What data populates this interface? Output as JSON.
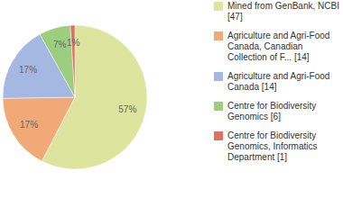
{
  "chart_data": {
    "type": "pie",
    "categories": [
      "Mined from GenBank, NCBI [47]",
      "Agriculture and Agri-Food Canada, Canadian Collection of F... [14]",
      "Agriculture and Agri-Food Canada [14]",
      "Centre for Biodiversity Genomics [6]",
      "Centre for Biodiversity Genomics, Informatics Department [1]"
    ],
    "values": [
      57,
      17,
      17,
      7,
      1
    ],
    "value_labels": [
      "57%",
      "17%",
      "17%",
      "7%",
      "1%"
    ],
    "data_labels": true,
    "colors": [
      "#dde49e",
      "#f0a977",
      "#a4b8e2",
      "#9dce7f",
      "#e0705f"
    ],
    "legend": "right"
  }
}
